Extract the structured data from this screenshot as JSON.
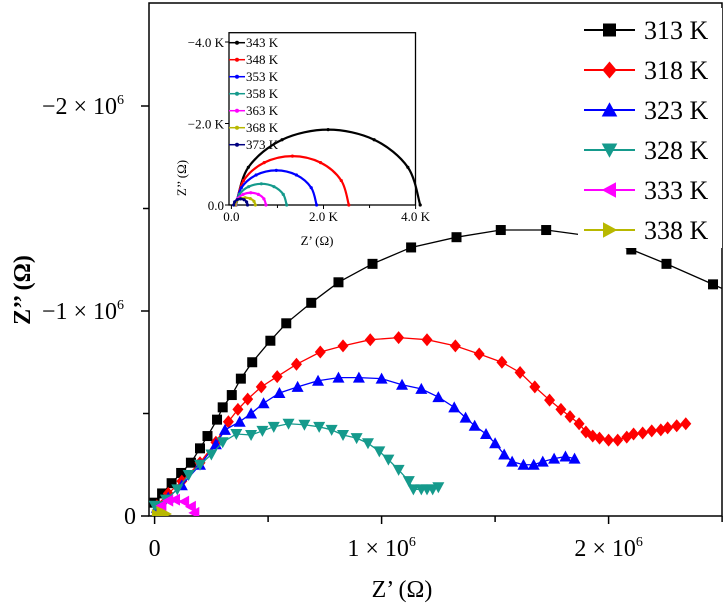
{
  "chart_data": [
    {
      "type": "scatter",
      "xlabel": "Z’ (Ω)",
      "ylabel": "Z’’ (Ω)",
      "xlim": [
        -20000.0,
        2500000.0
      ],
      "ylim": [
        0,
        -2490000.0
      ],
      "y_axis_reversed": true,
      "x_ticks": [
        {
          "value": 0,
          "label": "0"
        },
        {
          "value": 1000000.0,
          "label": "1 × 10"
        },
        {
          "value": 2000000.0,
          "label": "2 × 10"
        }
      ],
      "x_tick_exponent": "6",
      "x_minor_ticks": [
        500000.0,
        1500000.0,
        2500000.0
      ],
      "y_ticks": [
        {
          "value": 0,
          "label": "0"
        },
        {
          "value": -1000000.0,
          "label": "−1 × 10"
        },
        {
          "value": -2000000.0,
          "label": "−2 × 10"
        }
      ],
      "y_tick_exponent": "6",
      "y_minor_ticks": [
        -500000.0,
        -1500000.0
      ],
      "grid": false,
      "legend_position": "top-right",
      "series": [
        {
          "name": "313 K",
          "color": "#000000",
          "marker": "square",
          "points": [
            [
              0,
              -65000.0
            ],
            [
              33000.0,
              -110000.0
            ],
            [
              75000.0,
              -160000.0
            ],
            [
              117000.0,
              -210000.0
            ],
            [
              160000.0,
              -260000.0
            ],
            [
              200000.0,
              -330000.0
            ],
            [
              233000.0,
              -390000.0
            ],
            [
              275000.0,
              -470000.0
            ],
            [
              300000.0,
              -530000.0
            ],
            [
              340000.0,
              -590000.0
            ],
            [
              380000.0,
              -670000.0
            ],
            [
              430000.0,
              -750000.0
            ],
            [
              510000.0,
              -855000.0
            ],
            [
              580000.0,
              -940000.0
            ],
            [
              690000.0,
              -1040000.0
            ],
            [
              810000.0,
              -1140000.0
            ],
            [
              960000.0,
              -1230000.0
            ],
            [
              1130000.0,
              -1310000.0
            ],
            [
              1330000.0,
              -1360000.0
            ],
            [
              1525000.0,
              -1395000.0
            ],
            [
              1725000.0,
              -1395000.0
            ],
            [
              1920000.0,
              -1366000.0
            ],
            [
              2100000.0,
              -1300000.0
            ],
            [
              2255000.0,
              -1230000.0
            ],
            [
              2460000.0,
              -1130000.0
            ],
            [
              2560000.0,
              -1080000.0
            ]
          ]
        },
        {
          "name": "318 K",
          "color": "#ff0000",
          "marker": "diamond",
          "points": [
            [
              10000.0,
              -50000.0
            ],
            [
              60000.0,
              -110000.0
            ],
            [
              120000.0,
              -170000.0
            ],
            [
              200000.0,
              -260000.0
            ],
            [
              270000.0,
              -360000.0
            ],
            [
              325000.0,
              -460000.0
            ],
            [
              367000.0,
              -520000.0
            ],
            [
              410000.0,
              -570000.0
            ],
            [
              470000.0,
              -630000.0
            ],
            [
              540000.0,
              -680000.0
            ],
            [
              625000.0,
              -740000.0
            ],
            [
              730000.0,
              -800000.0
            ],
            [
              830000.0,
              -830000.0
            ],
            [
              950000.0,
              -860000.0
            ],
            [
              1075000.0,
              -870000.0
            ],
            [
              1200000.0,
              -860000.0
            ],
            [
              1325000.0,
              -830000.0
            ],
            [
              1430000.0,
              -790000.0
            ],
            [
              1530000.0,
              -750000.0
            ],
            [
              1610000.0,
              -700000.0
            ],
            [
              1675000.0,
              -630000.0
            ],
            [
              1740000.0,
              -565000.0
            ],
            [
              1790000.0,
              -520000.0
            ],
            [
              1830000.0,
              -485000.0
            ],
            [
              1870000.0,
              -450000.0
            ],
            [
              1900000.0,
              -410000.0
            ],
            [
              1930000.0,
              -390000.0
            ],
            [
              1960000.0,
              -380000.0
            ],
            [
              2000000.0,
              -370000.0
            ],
            [
              2040000.0,
              -370000.0
            ],
            [
              2080000.0,
              -385000.0
            ],
            [
              2110000.0,
              -400000.0
            ],
            [
              2150000.0,
              -405000.0
            ],
            [
              2190000.0,
              -415000.0
            ],
            [
              2230000.0,
              -420000.0
            ],
            [
              2260000.0,
              -430000.0
            ],
            [
              2300000.0,
              -440000.0
            ],
            [
              2340000.0,
              -450000.0
            ]
          ]
        },
        {
          "name": "323 K",
          "color": "#0000ff",
          "marker": "triangle-up",
          "points": [
            [
              10000.0,
              -40000.0
            ],
            [
              60000.0,
              -90000.0
            ],
            [
              120000.0,
              -150000.0
            ],
            [
              200000.0,
              -250000.0
            ],
            [
              270000.0,
              -350000.0
            ],
            [
              310000.0,
              -420000.0
            ],
            [
              375000.0,
              -460000.0
            ],
            [
              425000.0,
              -500000.0
            ],
            [
              480000.0,
              -550000.0
            ],
            [
              550000.0,
              -600000.0
            ],
            [
              630000.0,
              -630000.0
            ],
            [
              720000.0,
              -660000.0
            ],
            [
              810000.0,
              -675000.0
            ],
            [
              900000.0,
              -675000.0
            ],
            [
              1000000.0,
              -670000.0
            ],
            [
              1090000.0,
              -640000.0
            ],
            [
              1175000.0,
              -620000.0
            ],
            [
              1250000.0,
              -580000.0
            ],
            [
              1320000.0,
              -530000.0
            ],
            [
              1370000.0,
              -480000.0
            ],
            [
              1410000.0,
              -440000.0
            ],
            [
              1460000.0,
              -400000.0
            ],
            [
              1500000.0,
              -355000.0
            ],
            [
              1540000.0,
              -300000.0
            ],
            [
              1575000.0,
              -265000.0
            ],
            [
              1625000.0,
              -250000.0
            ],
            [
              1670000.0,
              -250000.0
            ],
            [
              1710000.0,
              -265000.0
            ],
            [
              1760000.0,
              -280000.0
            ],
            [
              1810000.0,
              -290000.0
            ],
            [
              1850000.0,
              -280000.0
            ]
          ]
        },
        {
          "name": "328 K",
          "color": "#159a8c",
          "marker": "triangle-down",
          "points": [
            [
              0,
              -50000.0
            ],
            [
              50000.0,
              -80000.0
            ],
            [
              100000.0,
              -130000.0
            ],
            [
              150000.0,
              -200000.0
            ],
            [
              200000.0,
              -250000.0
            ],
            [
              250000.0,
              -300000.0
            ],
            [
              300000.0,
              -360000.0
            ],
            [
              360000.0,
              -400000.0
            ],
            [
              425000.0,
              -395000.0
            ],
            [
              475000.0,
              -415000.0
            ],
            [
              525000.0,
              -435000.0
            ],
            [
              590000.0,
              -450000.0
            ],
            [
              660000.0,
              -445000.0
            ],
            [
              725000.0,
              -435000.0
            ],
            [
              780000.0,
              -420000.0
            ],
            [
              830000.0,
              -395000.0
            ],
            [
              890000.0,
              -380000.0
            ],
            [
              940000.0,
              -355000.0
            ],
            [
              990000.0,
              -315000.0
            ],
            [
              1030000.0,
              -275000.0
            ],
            [
              1075000.0,
              -225000.0
            ],
            [
              1120000.0,
              -170000.0
            ],
            [
              1140000.0,
              -130000.0
            ],
            [
              1175000.0,
              -130000.0
            ],
            [
              1200000.0,
              -130000.0
            ],
            [
              1225000.0,
              -130000.0
            ],
            [
              1250000.0,
              -140000.0
            ]
          ]
        },
        {
          "name": "333 K",
          "color": "#ff00ff",
          "marker": "triangle-left",
          "points": [
            [
              20000.0,
              -10000.0
            ],
            [
              30000.0,
              -50000.0
            ],
            [
              60000.0,
              -75000.0
            ],
            [
              90000.0,
              -80000.0
            ],
            [
              130000.0,
              -70000.0
            ],
            [
              160000.0,
              -45000.0
            ],
            [
              175000.0,
              -15000.0
            ]
          ]
        },
        {
          "name": "338 K",
          "color": "#b8b800",
          "marker": "triangle-right",
          "points": [
            [
              10000.0,
              -5000.0
            ],
            [
              30000.0,
              -20000.0
            ],
            [
              50000.0,
              -10000.0
            ]
          ]
        }
      ]
    },
    {
      "type": "line",
      "inset": true,
      "xlabel": "Z’ (Ω)",
      "ylabel": "Z’’ (Ω)",
      "xlim": [
        -60,
        4100
      ],
      "ylim": [
        0,
        -4250
      ],
      "y_axis_reversed": true,
      "x_ticks": [
        {
          "value": 0,
          "label": "0.0"
        },
        {
          "value": 2000,
          "label": "2.0 K"
        },
        {
          "value": 4000,
          "label": "4.0 K"
        }
      ],
      "y_ticks": [
        {
          "value": 0,
          "label": "0.0"
        },
        {
          "value": -2000,
          "label": "−2.0 K"
        },
        {
          "value": -4000,
          "label": "−4.0 K"
        }
      ],
      "legend_position": "top-left",
      "series": [
        {
          "name": "343 K",
          "color": "#000000",
          "points": [
            [
              100,
              0
            ],
            [
              368,
              -925
            ],
            [
              1100,
              -1602
            ],
            [
              2100,
              -1850
            ],
            [
              3100,
              -1602
            ],
            [
              3832,
              -925
            ],
            [
              4100,
              0
            ]
          ]
        },
        {
          "name": "348 K",
          "color": "#ff0000",
          "points": [
            [
              100,
              0
            ],
            [
              264,
              -600
            ],
            [
              712,
              -1039
            ],
            [
              1325,
              -1200
            ],
            [
              1937,
              -1039
            ],
            [
              2386,
              -600
            ],
            [
              2550,
              0
            ]
          ]
        },
        {
          "name": "353 K",
          "color": "#0000ff",
          "points": [
            [
              100,
              0
            ],
            [
              217,
              -425
            ],
            [
              537,
              -736
            ],
            [
              975,
              -850
            ],
            [
              1412,
              -736
            ],
            [
              1733,
              -425
            ],
            [
              1850,
              0
            ]
          ]
        },
        {
          "name": "358 K",
          "color": "#159a8c",
          "points": [
            [
              100,
              0
            ],
            [
              174,
              -260
            ],
            [
              375,
              -450
            ],
            [
              650,
              -520
            ],
            [
              925,
              -450
            ],
            [
              1126,
              -260
            ],
            [
              1200,
              0
            ]
          ]
        },
        {
          "name": "363 K",
          "color": "#ff00ff",
          "points": [
            [
              90,
              0
            ],
            [
              134,
              -150
            ],
            [
              255,
              -260
            ],
            [
              420,
              -300
            ],
            [
              585,
              -260
            ],
            [
              706,
              -150
            ],
            [
              750,
              0
            ]
          ]
        },
        {
          "name": "368 K",
          "color": "#b8b800",
          "points": [
            [
              80,
              0
            ],
            [
              109,
              -90
            ],
            [
              190,
              -156
            ],
            [
              300,
              -180
            ],
            [
              410,
              -156
            ],
            [
              491,
              -90
            ],
            [
              520,
              0
            ]
          ]
        },
        {
          "name": "373 K",
          "color": "#000080",
          "points": [
            [
              50,
              0
            ],
            [
              70,
              -75
            ],
            [
              125,
              -130
            ],
            [
              200,
              -150
            ],
            [
              275,
              -130
            ],
            [
              330,
              -75
            ],
            [
              350,
              0
            ]
          ]
        }
      ]
    }
  ]
}
